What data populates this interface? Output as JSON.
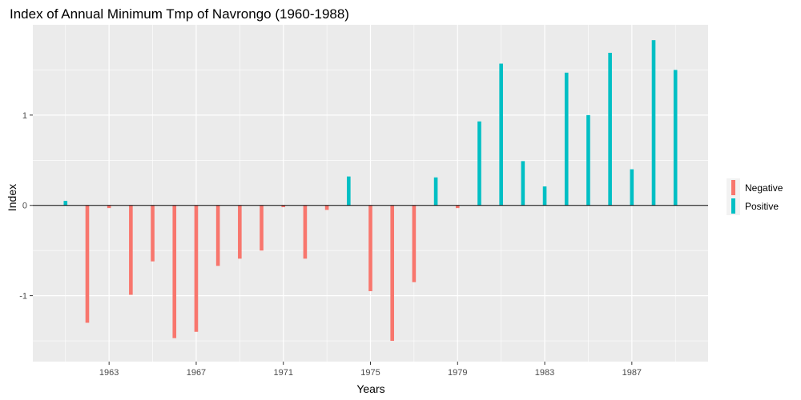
{
  "chart_data": {
    "type": "bar",
    "title": "Index of Annual Minimum Tmp of Navrongo (1960-1988)",
    "xlabel": "Years",
    "ylabel": "Index",
    "x": [
      1961,
      1962,
      1963,
      1964,
      1965,
      1966,
      1967,
      1968,
      1969,
      1970,
      1971,
      1972,
      1973,
      1974,
      1975,
      1976,
      1977,
      1978,
      1979,
      1980,
      1981,
      1982,
      1983,
      1984,
      1985,
      1986,
      1987,
      1988,
      1989
    ],
    "values": [
      0.05,
      -1.3,
      -0.03,
      -0.99,
      -0.62,
      -1.47,
      -1.4,
      -0.67,
      -0.59,
      -0.5,
      -0.02,
      -0.59,
      -0.05,
      0.32,
      -0.95,
      -1.5,
      -0.85,
      0.31,
      -0.03,
      0.93,
      1.57,
      0.49,
      0.21,
      1.47,
      1.0,
      1.69,
      0.4,
      1.83,
      1.5
    ],
    "xticks": [
      1963,
      1967,
      1971,
      1975,
      1979,
      1983,
      1987
    ],
    "yticks": [
      -1,
      0,
      1
    ],
    "xlim": [
      1959.5,
      1990.5
    ],
    "ylim": [
      -1.73,
      2.0
    ],
    "legend": {
      "position": "right",
      "entries": [
        {
          "label": "Negative",
          "color": "#F8766D"
        },
        {
          "label": "Positive",
          "color": "#00BFC4"
        }
      ]
    },
    "colors": {
      "negative": "#F8766D",
      "positive": "#00BFC4",
      "panel": "#EBEBEB",
      "grid": "#FFFFFF",
      "zero_line": "#000000"
    },
    "grid": true
  }
}
